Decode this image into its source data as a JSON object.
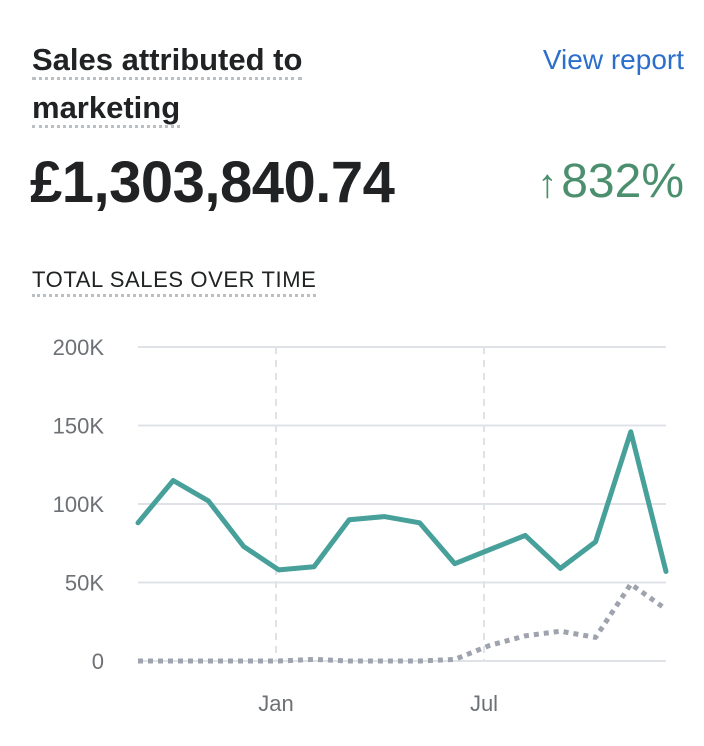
{
  "header": {
    "title": "Sales attributed to marketing",
    "link_label": "View report"
  },
  "metric": {
    "value": "£1,303,840.74",
    "change": "832%",
    "change_direction": "up",
    "change_color": "#4c8f6e"
  },
  "chart_section_title": "TOTAL SALES OVER TIME",
  "chart_data": {
    "type": "line",
    "x_tick_labels": [
      "Jan",
      "Jul"
    ],
    "y_tick_labels": [
      "200K",
      "150K",
      "100K",
      "50K",
      "0"
    ],
    "ylim": [
      0,
      200000
    ],
    "y_ticks": [
      0,
      50000,
      100000,
      150000,
      200000
    ],
    "grid": true,
    "series": [
      {
        "color": "#47a09a",
        "style": "solid",
        "values": [
          88000,
          115000,
          102000,
          73000,
          58000,
          60000,
          90000,
          92000,
          88000,
          62000,
          71000,
          80000,
          59000,
          76000,
          146000,
          57000
        ]
      },
      {
        "color": "#9ea3ae",
        "style": "dotted",
        "values": [
          0,
          0,
          0,
          0,
          0,
          1000,
          0,
          0,
          0,
          1000,
          10000,
          16000,
          19000,
          15000,
          49000,
          33000
        ]
      }
    ]
  }
}
